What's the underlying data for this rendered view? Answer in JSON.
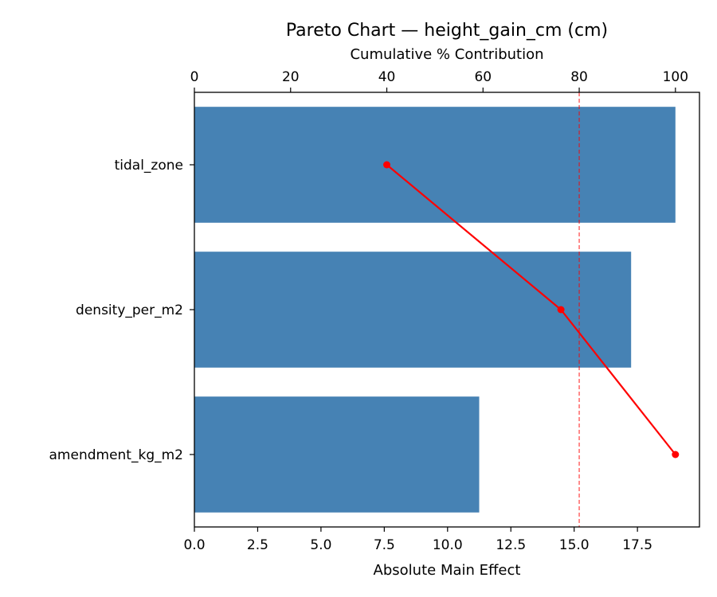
{
  "chart_data": {
    "type": "bar",
    "orientation": "horizontal",
    "title": "Pareto Chart — height_gain_cm (cm)",
    "xlabel": "Absolute Main Effect",
    "x2label": "Cumulative % Contribution",
    "categories": [
      "tidal_zone",
      "density_per_m2",
      "amendment_kg_m2"
    ],
    "values": [
      19.0,
      17.25,
      11.25
    ],
    "cumulative_percent": [
      40.0,
      76.2,
      100.0
    ],
    "xlim": [
      0,
      19.95
    ],
    "x2lim": [
      0,
      105
    ],
    "xticks": [
      "0.0",
      "2.5",
      "5.0",
      "7.5",
      "10.0",
      "12.5",
      "15.0",
      "17.5"
    ],
    "xtick_values": [
      0,
      2.5,
      5,
      7.5,
      10,
      12.5,
      15,
      17.5
    ],
    "x2ticks": [
      "0",
      "20",
      "40",
      "60",
      "80",
      "100"
    ],
    "x2tick_values": [
      0,
      20,
      40,
      60,
      80,
      100
    ],
    "threshold_percent": 80,
    "grid": false,
    "colors": {
      "bar": "#4682b4",
      "cumulative_line": "#ff0000",
      "threshold": "#ff0000"
    }
  }
}
